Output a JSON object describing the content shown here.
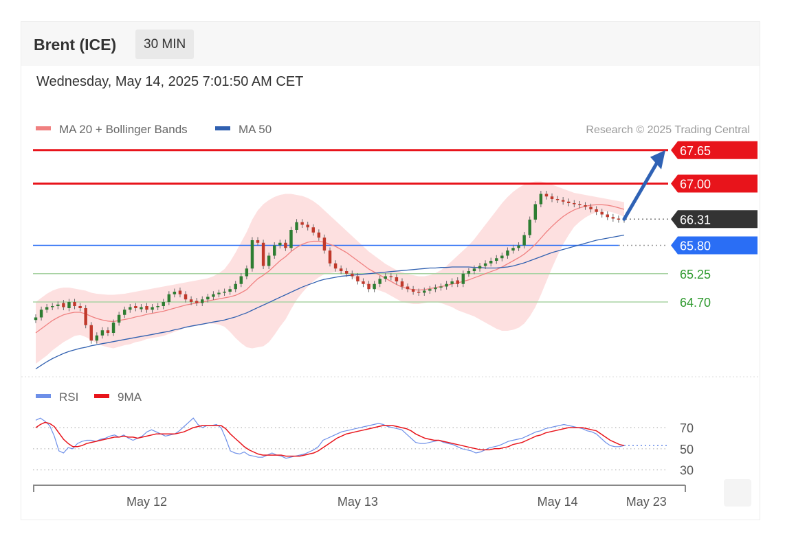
{
  "header": {
    "title": "Brent (ICE)",
    "timeframe": "30 MIN",
    "datetime": "Wednesday, May 14, 2025 7:01:50 AM CET"
  },
  "credit": "Research © 2025 Trading Central",
  "colors": {
    "resistance": "#e8141b",
    "support_blue": "#2a6ef5",
    "support_green": "#5aad55",
    "last_price": "#333333",
    "candle_up": "#2e7d32",
    "candle_down": "#c0392b",
    "ma20": "#f08080",
    "bands": "#fcd5d5",
    "ma50": "#3060b0",
    "rsi": "#6d8fe8",
    "rsi_9ma": "#e8141b",
    "arrow": "#2f62b5"
  },
  "chart_data": [
    {
      "type": "line",
      "name": "price",
      "legend": [
        {
          "label": "MA 20 + Bollinger Bands",
          "color": "#f08080"
        },
        {
          "label": "MA 50",
          "color": "#3060b0"
        }
      ],
      "legend_position": "top-left",
      "ylim": [
        63.3,
        67.9
      ],
      "x_ticks": [
        {
          "label": "May 12",
          "t": 20
        },
        {
          "label": "May 13",
          "t": 58
        },
        {
          "label": "May 14",
          "t": 94
        },
        {
          "label": "May 23",
          "t": 110
        }
      ],
      "levels": [
        {
          "value": 67.65,
          "label": "67.65",
          "kind": "resistance"
        },
        {
          "value": 67.0,
          "label": "67.00",
          "kind": "resistance"
        },
        {
          "value": 66.31,
          "label": "66.31",
          "kind": "last"
        },
        {
          "value": 65.8,
          "label": "65.80",
          "kind": "support_blue"
        },
        {
          "value": 65.25,
          "label": "65.25",
          "kind": "support_green"
        },
        {
          "value": 64.7,
          "label": "64.70",
          "kind": "support_green"
        }
      ],
      "close": [
        64.4,
        64.55,
        64.6,
        64.62,
        64.65,
        64.6,
        64.7,
        64.62,
        64.58,
        64.25,
        63.95,
        64.05,
        64.15,
        64.1,
        64.3,
        64.45,
        64.55,
        64.6,
        64.58,
        64.6,
        64.55,
        64.6,
        64.62,
        64.7,
        64.85,
        64.9,
        64.85,
        64.75,
        64.7,
        64.68,
        64.75,
        64.8,
        64.85,
        64.88,
        64.9,
        64.95,
        65.05,
        65.2,
        65.35,
        65.9,
        65.85,
        65.4,
        65.6,
        65.8,
        65.85,
        65.75,
        66.1,
        66.25,
        66.2,
        66.15,
        66.05,
        65.95,
        65.7,
        65.45,
        65.35,
        65.3,
        65.25,
        65.2,
        65.1,
        65.05,
        64.95,
        65.05,
        65.15,
        65.2,
        65.18,
        65.1,
        65.0,
        64.95,
        64.9,
        64.88,
        64.92,
        64.95,
        64.98,
        65.0,
        65.05,
        65.1,
        65.05,
        65.25,
        65.3,
        65.35,
        65.4,
        65.45,
        65.5,
        65.55,
        65.6,
        65.7,
        65.75,
        65.8,
        66.0,
        66.3,
        66.6,
        66.8,
        66.75,
        66.7,
        66.68,
        66.65,
        66.62,
        66.6,
        66.58,
        66.55,
        66.5,
        66.45,
        66.4,
        66.35,
        66.32,
        66.3,
        66.31
      ],
      "open": [
        64.35,
        64.4,
        64.55,
        64.6,
        64.62,
        64.68,
        64.58,
        64.7,
        64.62,
        64.58,
        64.25,
        63.95,
        64.05,
        64.15,
        64.1,
        64.3,
        64.45,
        64.55,
        64.62,
        64.56,
        64.62,
        64.55,
        64.6,
        64.62,
        64.7,
        64.85,
        64.92,
        64.85,
        64.75,
        64.72,
        64.68,
        64.75,
        64.8,
        64.85,
        64.88,
        64.9,
        64.95,
        65.05,
        65.2,
        65.35,
        65.9,
        65.85,
        65.4,
        65.6,
        65.8,
        65.85,
        65.75,
        66.1,
        66.25,
        66.2,
        66.15,
        66.05,
        65.95,
        65.7,
        65.45,
        65.35,
        65.3,
        65.25,
        65.2,
        65.1,
        65.05,
        64.95,
        65.05,
        65.15,
        65.2,
        65.18,
        65.1,
        65.0,
        64.95,
        64.9,
        64.88,
        64.92,
        64.95,
        64.98,
        65.0,
        65.05,
        65.12,
        65.05,
        65.25,
        65.3,
        65.35,
        65.4,
        65.45,
        65.5,
        65.55,
        65.6,
        65.7,
        65.75,
        65.8,
        66.0,
        66.3,
        66.6,
        66.8,
        66.75,
        66.7,
        66.68,
        66.65,
        66.62,
        66.6,
        66.58,
        66.55,
        66.5,
        66.45,
        66.4,
        66.35,
        66.32,
        66.3
      ],
      "ma20": [
        64.1,
        64.18,
        64.26,
        64.34,
        64.4,
        64.45,
        64.48,
        64.5,
        64.5,
        64.47,
        64.42,
        64.38,
        64.35,
        64.33,
        64.32,
        64.34,
        64.36,
        64.38,
        64.41,
        64.43,
        64.46,
        64.48,
        64.5,
        64.52,
        64.55,
        64.58,
        64.61,
        64.64,
        64.66,
        64.68,
        64.7,
        64.72,
        64.74,
        64.76,
        64.78,
        64.8,
        64.83,
        64.88,
        64.94,
        65.05,
        65.15,
        65.22,
        65.3,
        65.4,
        65.5,
        65.58,
        65.68,
        65.76,
        65.82,
        65.86,
        65.88,
        65.88,
        65.86,
        65.82,
        65.78,
        65.72,
        65.66,
        65.58,
        65.5,
        65.42,
        65.34,
        65.28,
        65.22,
        65.16,
        65.1,
        65.04,
        64.99,
        64.96,
        64.94,
        64.93,
        64.94,
        64.96,
        64.98,
        65.0,
        65.02,
        65.05,
        65.07,
        65.1,
        65.13,
        65.17,
        65.21,
        65.25,
        65.29,
        65.33,
        65.38,
        65.44,
        65.5,
        65.56,
        65.63,
        65.72,
        65.82,
        65.94,
        66.06,
        66.17,
        66.27,
        66.36,
        66.43,
        66.49,
        66.53,
        66.56,
        66.58,
        66.59,
        66.59,
        66.58,
        66.56,
        66.53,
        66.5
      ],
      "band_upper": [
        64.7,
        64.78,
        64.86,
        64.92,
        64.96,
        64.98,
        64.98,
        64.96,
        64.94,
        64.92,
        64.88,
        64.86,
        64.85,
        64.84,
        64.84,
        64.85,
        64.86,
        64.88,
        64.9,
        64.92,
        64.94,
        64.96,
        64.98,
        65.0,
        65.02,
        65.04,
        65.06,
        65.08,
        65.1,
        65.12,
        65.14,
        65.16,
        65.2,
        65.26,
        65.34,
        65.48,
        65.66,
        65.86,
        66.06,
        66.3,
        66.48,
        66.6,
        66.68,
        66.74,
        66.78,
        66.8,
        66.8,
        66.78,
        66.76,
        66.72,
        66.66,
        66.58,
        66.48,
        66.38,
        66.28,
        66.18,
        66.08,
        65.98,
        65.88,
        65.78,
        65.68,
        65.6,
        65.52,
        65.44,
        65.38,
        65.32,
        65.28,
        65.24,
        65.22,
        65.2,
        65.2,
        65.22,
        65.26,
        65.32,
        65.4,
        65.5,
        65.6,
        65.7,
        65.8,
        65.92,
        66.06,
        66.2,
        66.34,
        66.48,
        66.62,
        66.74,
        66.84,
        66.92,
        66.98,
        67.02,
        67.04,
        67.04,
        67.02,
        66.98,
        66.94,
        66.9,
        66.86,
        66.82,
        66.8,
        66.78,
        66.76,
        66.74,
        66.72,
        66.7,
        66.68,
        66.66,
        66.64
      ],
      "band_lower": [
        63.5,
        63.58,
        63.66,
        63.76,
        63.84,
        63.92,
        63.98,
        64.04,
        64.06,
        64.02,
        63.96,
        63.9,
        63.85,
        63.82,
        63.8,
        63.83,
        63.86,
        63.88,
        63.92,
        63.94,
        63.98,
        64.0,
        64.02,
        64.04,
        64.08,
        64.12,
        64.16,
        64.2,
        64.22,
        64.24,
        64.26,
        64.28,
        64.28,
        64.26,
        64.22,
        64.12,
        64.0,
        63.9,
        63.82,
        63.8,
        63.82,
        63.84,
        63.92,
        64.06,
        64.22,
        64.36,
        64.56,
        64.74,
        64.88,
        65.0,
        65.1,
        65.18,
        65.24,
        65.26,
        65.28,
        65.26,
        65.24,
        65.18,
        65.12,
        65.06,
        65.0,
        64.96,
        64.92,
        64.88,
        64.82,
        64.76,
        64.7,
        64.68,
        64.66,
        64.66,
        64.68,
        64.7,
        64.7,
        64.68,
        64.64,
        64.6,
        64.54,
        64.5,
        64.46,
        64.42,
        64.36,
        64.3,
        64.24,
        64.18,
        64.14,
        64.14,
        64.16,
        64.2,
        64.28,
        64.42,
        64.6,
        64.84,
        65.1,
        65.36,
        65.6,
        65.82,
        66.0,
        66.16,
        66.26,
        66.34,
        66.4,
        66.44,
        66.46,
        66.46,
        66.44,
        66.4,
        66.36
      ],
      "ma50": [
        63.4,
        63.47,
        63.54,
        63.6,
        63.65,
        63.7,
        63.74,
        63.77,
        63.8,
        63.82,
        63.85,
        63.87,
        63.89,
        63.91,
        63.93,
        63.95,
        63.97,
        63.99,
        64.01,
        64.03,
        64.05,
        64.07,
        64.09,
        64.11,
        64.13,
        64.16,
        64.18,
        64.21,
        64.23,
        64.25,
        64.27,
        64.29,
        64.31,
        64.33,
        64.35,
        64.38,
        64.41,
        64.45,
        64.49,
        64.54,
        64.59,
        64.64,
        64.69,
        64.74,
        64.79,
        64.84,
        64.89,
        64.94,
        64.99,
        65.03,
        65.07,
        65.11,
        65.14,
        65.16,
        65.18,
        65.2,
        65.21,
        65.22,
        65.23,
        65.24,
        65.25,
        65.26,
        65.27,
        65.28,
        65.29,
        65.3,
        65.31,
        65.32,
        65.33,
        65.34,
        65.35,
        65.36,
        65.36,
        65.37,
        65.37,
        65.38,
        65.38,
        65.38,
        65.38,
        65.37,
        65.37,
        65.36,
        65.36,
        65.36,
        65.37,
        65.38,
        65.4,
        65.43,
        65.46,
        65.5,
        65.54,
        65.58,
        65.62,
        65.66,
        65.69,
        65.72,
        65.75,
        65.78,
        65.81,
        65.84,
        65.87,
        65.9,
        65.92,
        65.94,
        65.96,
        65.98,
        66.0
      ],
      "forecast_arrow": {
        "from": 66.31,
        "to": 67.65
      }
    },
    {
      "type": "line",
      "name": "rsi",
      "legend": [
        {
          "label": "RSI",
          "color": "#6d8fe8"
        },
        {
          "label": "9MA",
          "color": "#e8141b"
        }
      ],
      "legend_position": "top-left",
      "ylim": [
        20,
        85
      ],
      "y_ticks": [
        70,
        50,
        30
      ],
      "series": [
        {
          "name": "RSI",
          "values": [
            77,
            79,
            76,
            72,
            62,
            48,
            46,
            51,
            50,
            55,
            57,
            58,
            58,
            57,
            59,
            60,
            62,
            63,
            61,
            63,
            60,
            58,
            60,
            62,
            66,
            68,
            66,
            64,
            62,
            63,
            64,
            67,
            71,
            75,
            79,
            73,
            70,
            72,
            72,
            73,
            70,
            60,
            48,
            46,
            45,
            47,
            44,
            43,
            42,
            42,
            44,
            46,
            44,
            43,
            41,
            42,
            43,
            44,
            45,
            47,
            49,
            52,
            58,
            60,
            62,
            64,
            66,
            67,
            68,
            69,
            70,
            71,
            72,
            73,
            74,
            73,
            71,
            70,
            69,
            68,
            64,
            60,
            56,
            55,
            55,
            56,
            57,
            58,
            56,
            55,
            54,
            52,
            50,
            49,
            48,
            46,
            47,
            49,
            51,
            52,
            53,
            55,
            57,
            58,
            59,
            60,
            62,
            64,
            66,
            67,
            69,
            70,
            71,
            72,
            73,
            72,
            71,
            70,
            69,
            67,
            66,
            64,
            60,
            56,
            53,
            52,
            52,
            53
          ]
        },
        {
          "name": "9MA",
          "values": [
            70,
            73,
            75,
            74,
            71,
            65,
            59,
            55,
            52,
            52,
            53,
            55,
            56,
            57,
            58,
            59,
            60,
            61,
            61,
            62,
            61,
            61,
            60,
            61,
            62,
            63,
            64,
            64,
            64,
            64,
            64,
            65,
            66,
            68,
            70,
            71,
            72,
            72,
            72,
            72,
            72,
            69,
            64,
            60,
            56,
            52,
            49,
            47,
            45,
            44,
            44,
            44,
            44,
            44,
            43,
            43,
            43,
            43,
            44,
            45,
            46,
            48,
            51,
            54,
            57,
            60,
            62,
            64,
            65,
            66,
            67,
            68,
            69,
            70,
            71,
            72,
            72,
            72,
            71,
            70,
            69,
            67,
            64,
            62,
            60,
            59,
            58,
            58,
            57,
            56,
            55,
            54,
            53,
            52,
            51,
            50,
            49,
            49,
            49,
            50,
            50,
            51,
            52,
            54,
            55,
            56,
            58,
            60,
            62,
            63,
            65,
            66,
            67,
            68,
            69,
            70,
            70,
            70,
            70,
            69,
            68,
            67,
            64,
            61,
            58,
            56,
            54,
            53
          ]
        }
      ]
    }
  ]
}
